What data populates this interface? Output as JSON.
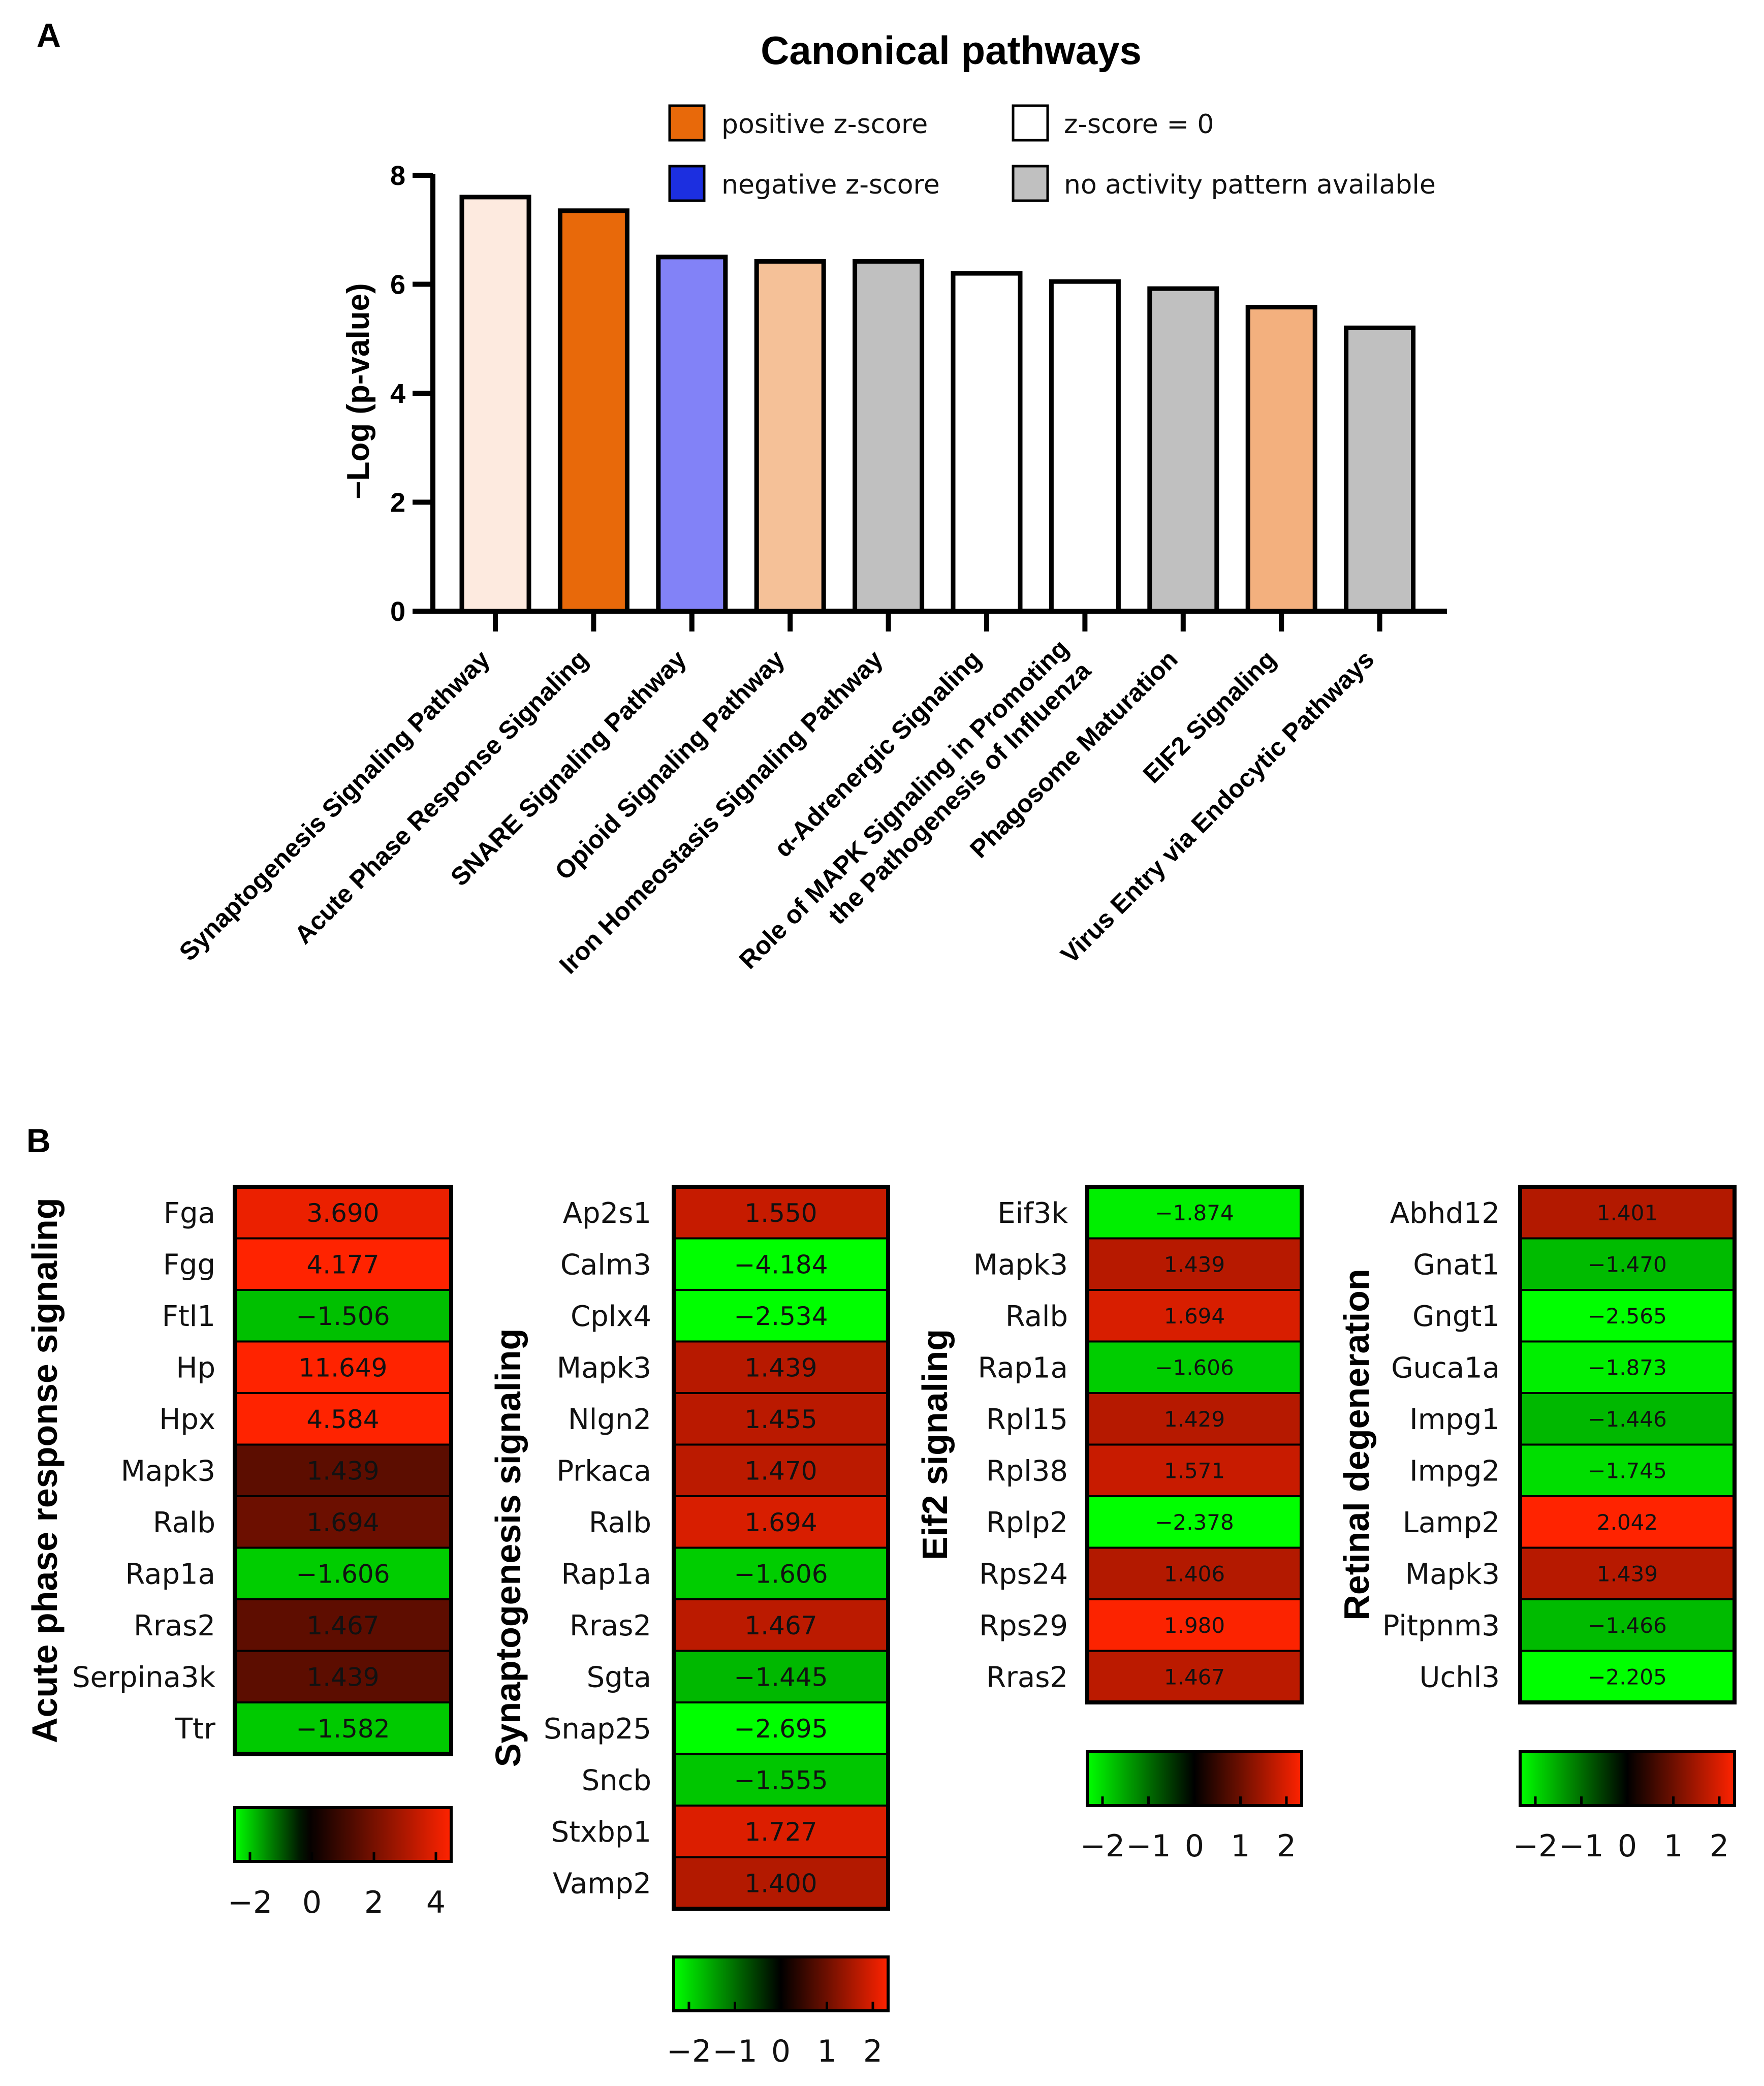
{
  "panels": {
    "a": "A",
    "b": "B"
  },
  "legend": {
    "items": [
      {
        "label": "positive z-score",
        "color": "#e8690a"
      },
      {
        "label": "negative z-score",
        "color": "#1c2fe0"
      },
      {
        "label": "z-score = 0",
        "color": "#ffffff"
      },
      {
        "label": "no activity pattern available",
        "color": "#c0c0c0"
      }
    ]
  },
  "chart_data": [
    {
      "type": "bar",
      "title": "Canonical pathways",
      "ylabel": "−Log (p-value)",
      "xlabel": "",
      "ylim": [
        0,
        8
      ],
      "yticks": [
        "0",
        "2",
        "4",
        "6",
        "8"
      ],
      "grid": false,
      "categories": [
        [
          "Synaptogenesis Signaling Pathway"
        ],
        [
          "Acute Phase Response Signaling"
        ],
        [
          "SNARE Signaling Pathway"
        ],
        [
          "Opioid Signaling Pathway"
        ],
        [
          "Iron Homeostasis Signaling Pathway"
        ],
        [
          "α-Adrenergic Signaling"
        ],
        [
          "Role of MAPK Signaling in Promoting",
          "the Pathogenesis of Influenza"
        ],
        [
          "Phagosome Maturation"
        ],
        [
          "EIF2 Signaling"
        ],
        [
          "Virus Entry via Endocytic Pathways"
        ]
      ],
      "values": [
        7.6,
        7.35,
        6.5,
        6.42,
        6.42,
        6.2,
        6.05,
        5.92,
        5.58,
        5.2
      ],
      "bar_colors": [
        "#fdeadf",
        "#e8690a",
        "#8282f7",
        "#f5c198",
        "#c0c0c0",
        "#ffffff",
        "#ffffff",
        "#c0c0c0",
        "#f3b07e",
        "#c0c0c0"
      ]
    },
    {
      "type": "heatmap",
      "title": "Acute phase response signaling",
      "genes": [
        "Fga",
        "Fgg",
        "Ftl1",
        "Hp",
        "Hpx",
        "Mapk3",
        "Ralb",
        "Rap1a",
        "Rras2",
        "Serpina3k",
        "Ttr"
      ],
      "labels": [
        "3.690",
        "4.177",
        "−1.506",
        "11.649",
        "4.584",
        "1.439",
        "1.694",
        "−1.606",
        "1.467",
        "1.439",
        "−1.582"
      ],
      "values": [
        3.69,
        4.177,
        -1.506,
        11.649,
        4.584,
        1.439,
        1.694,
        -1.606,
        1.467,
        1.439,
        -1.582
      ],
      "scale_min": -2,
      "scale_max": 4,
      "scale_ticks": [
        "−2",
        "0",
        "2",
        "4"
      ],
      "scale_tick_values": [
        -2,
        0,
        2,
        4
      ]
    },
    {
      "type": "heatmap",
      "title": "Synaptogenesis signaling",
      "genes": [
        "Ap2s1",
        "Calm3",
        "Cplx4",
        "Mapk3",
        "Nlgn2",
        "Prkaca",
        "Ralb",
        "Rap1a",
        "Rras2",
        "Sgta",
        "Snap25",
        "Sncb",
        "Stxbp1",
        "Vamp2"
      ],
      "labels": [
        "1.550",
        "−4.184",
        "−2.534",
        "1.439",
        "1.455",
        "1.470",
        "1.694",
        "−1.606",
        "1.467",
        "−1.445",
        "−2.695",
        "−1.555",
        "1.727",
        "1.400"
      ],
      "values": [
        1.55,
        -4.184,
        -2.534,
        1.439,
        1.455,
        1.47,
        1.694,
        -1.606,
        1.467,
        -1.445,
        -2.695,
        -1.555,
        1.727,
        1.4
      ],
      "scale_min": -2,
      "scale_max": 2,
      "scale_ticks": [
        "−2",
        "−1",
        "0",
        "1",
        "2"
      ],
      "scale_tick_values": [
        -2,
        -1,
        0,
        1,
        2
      ]
    },
    {
      "type": "heatmap",
      "title": "Eif2 signaling",
      "genes": [
        "Eif3k",
        "Mapk3",
        "Ralb",
        "Rap1a",
        "Rpl15",
        "Rpl38",
        "Rplp2",
        "Rps24",
        "Rps29",
        "Rras2"
      ],
      "labels": [
        "−1.874",
        "1.439",
        "1.694",
        "−1.606",
        "1.429",
        "1.571",
        "−2.378",
        "1.406",
        "1.980",
        "1.467"
      ],
      "values": [
        -1.874,
        1.439,
        1.694,
        -1.606,
        1.429,
        1.571,
        -2.378,
        1.406,
        1.98,
        1.467
      ],
      "scale_min": -2,
      "scale_max": 2,
      "scale_ticks": [
        "−2",
        "−1",
        "0",
        "1",
        "2"
      ],
      "scale_tick_values": [
        -2,
        -1,
        0,
        1,
        2
      ]
    },
    {
      "type": "heatmap",
      "title": "Retinal degeneration",
      "genes": [
        "Abhd12",
        "Gnat1",
        "Gngt1",
        "Guca1a",
        "Impg1",
        "Impg2",
        "Lamp2",
        "Mapk3",
        "Pitpnm3",
        "Uchl3"
      ],
      "labels": [
        "1.401",
        "−1.470",
        "−2.565",
        "−1.873",
        "−1.446",
        "−1.745",
        "2.042",
        "1.439",
        "−1.466",
        "−2.205"
      ],
      "values": [
        1.401,
        -1.47,
        -2.565,
        -1.873,
        -1.446,
        -1.745,
        2.042,
        1.439,
        -1.466,
        -2.205
      ],
      "scale_min": -2,
      "scale_max": 2,
      "scale_ticks": [
        "−2",
        "−1",
        "0",
        "1",
        "2"
      ],
      "scale_tick_values": [
        -2,
        -1,
        0,
        1,
        2
      ]
    }
  ]
}
